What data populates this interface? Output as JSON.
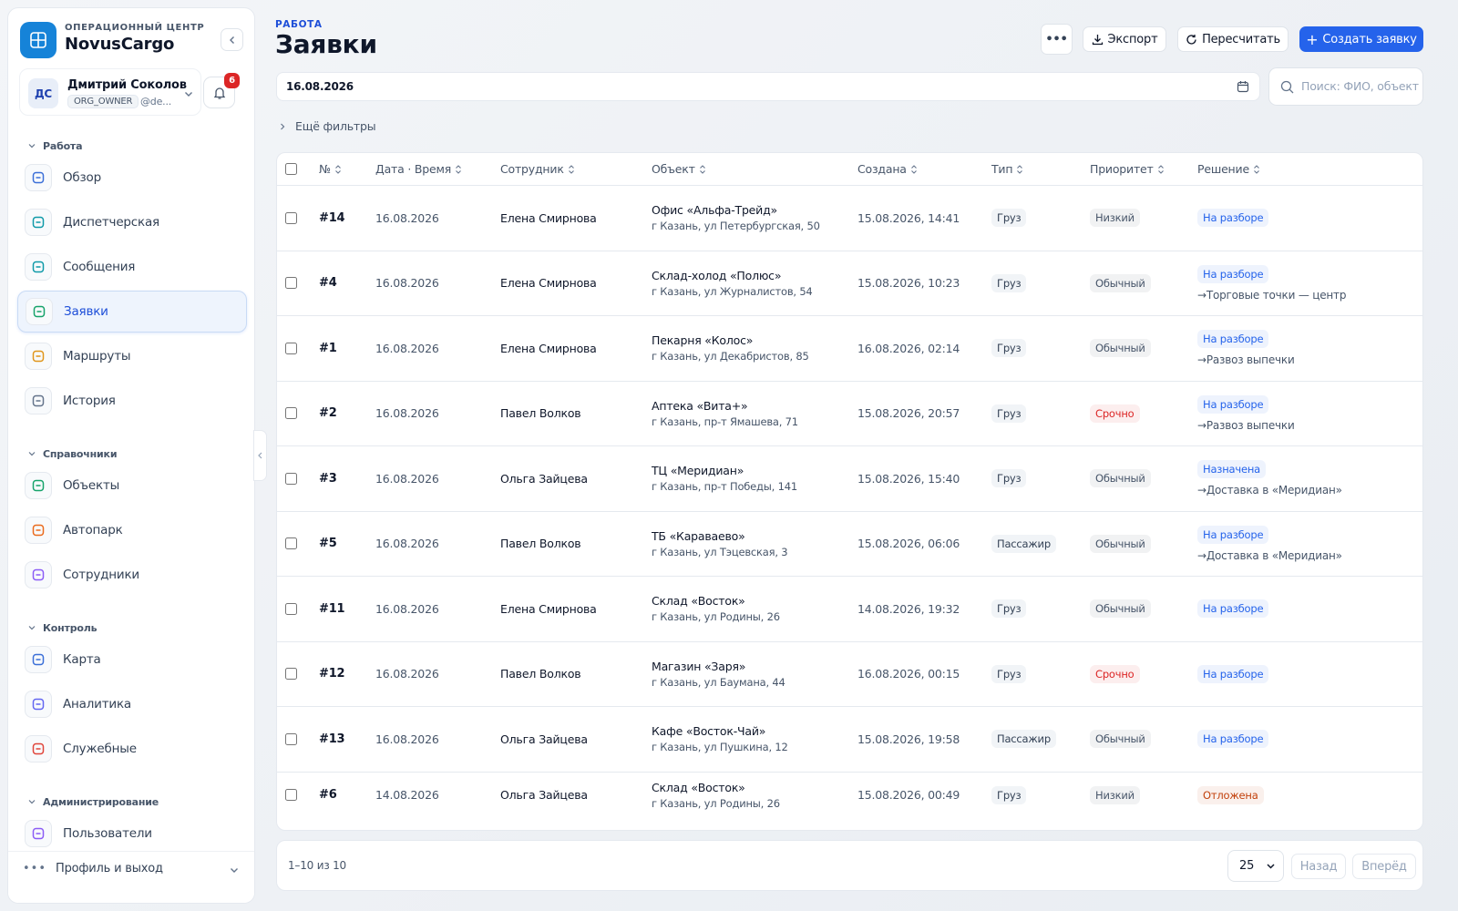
{
  "sidebar": {
    "brand_caption": "ОПЕРАЦИОННЫЙ ЦЕНТР",
    "brand": "NovusCargo",
    "user": {
      "initials": "ДС",
      "name": "Дмитрий Соколов",
      "role": "ORG_OWNER",
      "handle": "@de..."
    },
    "notifications": 6,
    "sections": [
      {
        "title": "Работа",
        "items": [
          {
            "label": "Обзор",
            "color": "#3b6fd8"
          },
          {
            "label": "Диспетчерская",
            "color": "#0f9aa8"
          },
          {
            "label": "Сообщения",
            "color": "#0f9aa8"
          },
          {
            "label": "Заявки",
            "color": "#16a36a",
            "active": true
          },
          {
            "label": "Маршруты",
            "color": "#e0951a"
          },
          {
            "label": "История",
            "color": "#64748b"
          }
        ]
      },
      {
        "title": "Справочники",
        "items": [
          {
            "label": "Объекты",
            "color": "#16a36a"
          },
          {
            "label": "Автопарк",
            "color": "#ea6a1c"
          },
          {
            "label": "Сотрудники",
            "color": "#8b5cf6"
          }
        ]
      },
      {
        "title": "Контроль",
        "items": [
          {
            "label": "Карта",
            "color": "#3b6fd8"
          },
          {
            "label": "Аналитика",
            "color": "#6366f1"
          },
          {
            "label": "Служебные",
            "color": "#e0453a"
          }
        ]
      },
      {
        "title": "Администрирование",
        "items": [
          {
            "label": "Пользователи",
            "color": "#8b5cf6"
          }
        ]
      }
    ],
    "footer": "Профиль и выход"
  },
  "header": {
    "caption": "РАБОТА",
    "title": "Заявки",
    "buttons": [
      "Экспорт",
      "Пересчитать",
      "Создать заявку"
    ]
  },
  "filters": {
    "date": "16.08.2026",
    "search_placeholder": "Поиск: ФИО, объект",
    "more": "Ещё фильтры"
  },
  "table": {
    "columns": [
      "№",
      "Дата · Время",
      "Сотрудник",
      "Объект",
      "Создана",
      "Тип",
      "Приоритет",
      "Решение"
    ],
    "rows": [
      {
        "id": "#14",
        "date": "16.08.2026",
        "employee": "Елена Смирнова",
        "object": "Офис «Альфа-Трейд»",
        "address": "г Казань, ул Петербургская, 50",
        "created": "15.08.2026, 14:41",
        "type": "Груз",
        "priority": "Низкий",
        "priority_color": "#475569",
        "status": "На разборе",
        "status_color": "#2563eb"
      },
      {
        "id": "#4",
        "date": "16.08.2026",
        "employee": "Елена Смирнова",
        "object": "Склад-холод «Полюс»",
        "address": "г Казань, ул Журналистов, 54",
        "created": "15.08.2026, 10:23",
        "type": "Груз",
        "priority": "Обычный",
        "priority_color": "#475569",
        "status": "На разборе",
        "status_color": "#2563eb",
        "route": "→Торговые точки — центр"
      },
      {
        "id": "#1",
        "date": "16.08.2026",
        "employee": "Елена Смирнова",
        "object": "Пекарня «Колос»",
        "address": "г Казань, ул Декабристов, 85",
        "created": "16.08.2026, 02:14",
        "type": "Груз",
        "priority": "Обычный",
        "priority_color": "#475569",
        "status": "На разборе",
        "status_color": "#2563eb",
        "route": "→Развоз выпечки"
      },
      {
        "id": "#2",
        "date": "16.08.2026",
        "employee": "Павел Волков",
        "object": "Аптека «Вита+»",
        "address": "г Казань, пр-т Ямашева, 71",
        "created": "15.08.2026, 20:57",
        "type": "Груз",
        "priority": "Срочно",
        "priority_color": "#dc2626",
        "status": "На разборе",
        "status_color": "#2563eb",
        "route": "→Развоз выпечки"
      },
      {
        "id": "#3",
        "date": "16.08.2026",
        "employee": "Ольга Зайцева",
        "object": "ТЦ «Меридиан»",
        "address": "г Казань, пр-т Победы, 141",
        "created": "15.08.2026, 15:40",
        "type": "Груз",
        "priority": "Обычный",
        "priority_color": "#475569",
        "status": "Назначена",
        "status_color": "#2563eb",
        "route": "→Доставка в «Меридиан»"
      },
      {
        "id": "#5",
        "date": "16.08.2026",
        "employee": "Павел Волков",
        "object": "ТБ «Караваево»",
        "address": "г Казань, ул Тэцевская, 3",
        "created": "15.08.2026, 06:06",
        "type": "Пассажир",
        "priority": "Обычный",
        "priority_color": "#475569",
        "status": "На разборе",
        "status_color": "#2563eb",
        "route": "→Доставка в «Меридиан»"
      },
      {
        "id": "#11",
        "date": "16.08.2026",
        "employee": "Елена Смирнова",
        "object": "Склад «Восток»",
        "address": "г Казань, ул Родины, 26",
        "created": "14.08.2026, 19:32",
        "type": "Груз",
        "priority": "Обычный",
        "priority_color": "#475569",
        "status": "На разборе",
        "status_color": "#2563eb"
      },
      {
        "id": "#12",
        "date": "16.08.2026",
        "employee": "Павел Волков",
        "object": "Магазин «Заря»",
        "address": "г Казань, ул Баумана, 44",
        "created": "16.08.2026, 00:15",
        "type": "Груз",
        "priority": "Срочно",
        "priority_color": "#dc2626",
        "status": "На разборе",
        "status_color": "#2563eb"
      },
      {
        "id": "#13",
        "date": "16.08.2026",
        "employee": "Ольга Зайцева",
        "object": "Кафе «Восток-Чай»",
        "address": "г Казань, ул Пушкина, 12",
        "created": "15.08.2026, 19:58",
        "type": "Пассажир",
        "priority": "Обычный",
        "priority_color": "#475569",
        "status": "На разборе",
        "status_color": "#2563eb"
      },
      {
        "id": "#6",
        "date": "14.08.2026",
        "employee": "Ольга Зайцева",
        "object": "Склад «Восток»",
        "address": "г Казань, ул Родины, 26",
        "created": "15.08.2026, 00:49",
        "type": "Груз",
        "priority": "Низкий",
        "priority_color": "#475569",
        "status": "Отложена",
        "status_color": "#c2410c"
      }
    ]
  },
  "pagination": {
    "summary": "1–10 из 10",
    "page_size": 25,
    "prev": "Назад",
    "next": "Вперёд"
  }
}
